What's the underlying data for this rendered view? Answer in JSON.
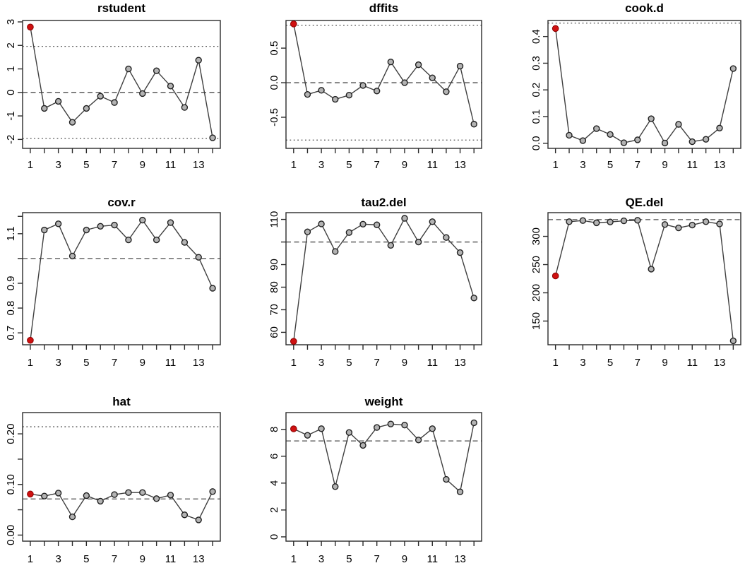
{
  "colors": {
    "background": "#ffffff",
    "axis": "#2b2b2b",
    "line": "#3f3f3f",
    "point_fill": "#b3b3b3",
    "point_stroke": "#1f1f1f",
    "influential_fill": "#cf1111",
    "influential_stroke": "#8a0000",
    "ref_line": "#4d4d4d"
  },
  "chart_data": [
    {
      "type": "line",
      "title": "rstudent",
      "x": [
        1,
        2,
        3,
        4,
        5,
        6,
        7,
        8,
        9,
        10,
        11,
        12,
        13,
        14
      ],
      "values": [
        2.78,
        -0.68,
        -0.38,
        -1.27,
        -0.68,
        -0.16,
        -0.43,
        1.0,
        -0.05,
        0.92,
        0.27,
        -0.64,
        1.37,
        -1.93
      ],
      "influential_index": 0,
      "xlim": [
        0.45,
        14.55
      ],
      "ylim": [
        -2.38,
        3.06
      ],
      "yticks": [
        {
          "v": -2,
          "label": "-2"
        },
        {
          "v": -1,
          "label": "-1"
        },
        {
          "v": 0,
          "label": "0"
        },
        {
          "v": 1,
          "label": "1"
        },
        {
          "v": 2,
          "label": "2"
        },
        {
          "v": 3,
          "label": "3"
        }
      ],
      "xtick_labels": [
        {
          "v": 1,
          "label": "1"
        },
        {
          "v": 3,
          "label": "3"
        },
        {
          "v": 5,
          "label": "5"
        },
        {
          "v": 7,
          "label": "7"
        },
        {
          "v": 9,
          "label": "9"
        },
        {
          "v": 11,
          "label": "11"
        },
        {
          "v": 13,
          "label": "13"
        }
      ],
      "ref_lines": [
        {
          "y": 1.96,
          "style": "dotted"
        },
        {
          "y": 0,
          "style": "dashed"
        },
        {
          "y": -1.96,
          "style": "dotted"
        }
      ]
    },
    {
      "type": "line",
      "title": "dffits",
      "x": [
        1,
        2,
        3,
        4,
        5,
        6,
        7,
        8,
        9,
        10,
        11,
        12,
        13,
        14
      ],
      "values": [
        0.85,
        -0.17,
        -0.11,
        -0.24,
        -0.18,
        -0.04,
        -0.12,
        0.3,
        0.0,
        0.26,
        0.07,
        -0.13,
        0.24,
        -0.6
      ],
      "influential_index": 0,
      "xlim": [
        0.45,
        14.55
      ],
      "ylim": [
        -0.95,
        0.9
      ],
      "yticks": [
        {
          "v": -0.5,
          "label": "-0.5"
        },
        {
          "v": 0,
          "label": "0.0"
        },
        {
          "v": 0.5,
          "label": "0.5"
        }
      ],
      "xtick_labels": [
        {
          "v": 1,
          "label": "1"
        },
        {
          "v": 3,
          "label": "3"
        },
        {
          "v": 5,
          "label": "5"
        },
        {
          "v": 7,
          "label": "7"
        },
        {
          "v": 9,
          "label": "9"
        },
        {
          "v": 11,
          "label": "11"
        },
        {
          "v": 13,
          "label": "13"
        }
      ],
      "ref_lines": [
        {
          "y": 0.83,
          "style": "dotted"
        },
        {
          "y": 0,
          "style": "dashed"
        },
        {
          "y": -0.83,
          "style": "dotted"
        }
      ]
    },
    {
      "type": "line",
      "title": "cook.d",
      "x": [
        1,
        2,
        3,
        4,
        5,
        6,
        7,
        8,
        9,
        10,
        11,
        12,
        13,
        14
      ],
      "values": [
        0.43,
        0.03,
        0.01,
        0.055,
        0.033,
        0.002,
        0.013,
        0.092,
        0.001,
        0.071,
        0.006,
        0.015,
        0.057,
        0.28
      ],
      "influential_index": 0,
      "xlim": [
        0.45,
        14.55
      ],
      "ylim": [
        -0.019,
        0.46
      ],
      "yticks": [
        {
          "v": 0,
          "label": "0.0"
        },
        {
          "v": 0.1,
          "label": "0.1"
        },
        {
          "v": 0.2,
          "label": "0.2"
        },
        {
          "v": 0.3,
          "label": "0.3"
        },
        {
          "v": 0.4,
          "label": "0.4"
        }
      ],
      "xtick_labels": [
        {
          "v": 1,
          "label": "1"
        },
        {
          "v": 3,
          "label": "3"
        },
        {
          "v": 5,
          "label": "5"
        },
        {
          "v": 7,
          "label": "7"
        },
        {
          "v": 9,
          "label": "9"
        },
        {
          "v": 11,
          "label": "11"
        },
        {
          "v": 13,
          "label": "13"
        }
      ],
      "ref_lines": [
        {
          "y": 0.45,
          "style": "dotted"
        }
      ]
    },
    {
      "type": "line",
      "title": "cov.r",
      "x": [
        1,
        2,
        3,
        4,
        5,
        6,
        7,
        8,
        9,
        10,
        11,
        12,
        13,
        14
      ],
      "values": [
        0.67,
        1.115,
        1.14,
        1.01,
        1.115,
        1.13,
        1.135,
        1.075,
        1.155,
        1.075,
        1.145,
        1.065,
        1.005,
        0.88
      ],
      "influential_index": 0,
      "xlim": [
        0.45,
        14.55
      ],
      "ylim": [
        0.652,
        1.185
      ],
      "yticks": [
        {
          "v": 0.7,
          "label": "0.7"
        },
        {
          "v": 0.8,
          "label": "0.8"
        },
        {
          "v": 0.9,
          "label": "0.9"
        },
        {
          "v": 1.0,
          "label": ""
        },
        {
          "v": 1.1,
          "label": "1.1"
        },
        {
          "v": 1.17,
          "label": ""
        }
      ],
      "xtick_labels": [
        {
          "v": 1,
          "label": "1"
        },
        {
          "v": 3,
          "label": "3"
        },
        {
          "v": 5,
          "label": "5"
        },
        {
          "v": 7,
          "label": "7"
        },
        {
          "v": 9,
          "label": "9"
        },
        {
          "v": 11,
          "label": "11"
        },
        {
          "v": 13,
          "label": "13"
        }
      ],
      "ref_lines": [
        {
          "y": 1.0,
          "style": "dashed"
        }
      ]
    },
    {
      "type": "line",
      "title": "tau2.del",
      "x": [
        1,
        2,
        3,
        4,
        5,
        6,
        7,
        8,
        9,
        10,
        11,
        12,
        13,
        14
      ],
      "values": [
        56,
        104.5,
        108,
        95.8,
        104.2,
        107.9,
        107.6,
        98.5,
        110.5,
        100,
        109,
        102,
        95.3,
        75.2
      ],
      "influential_index": 0,
      "xlim": [
        0.45,
        14.55
      ],
      "ylim": [
        54.5,
        113
      ],
      "yticks": [
        {
          "v": 60,
          "label": "60"
        },
        {
          "v": 70,
          "label": "70"
        },
        {
          "v": 80,
          "label": "80"
        },
        {
          "v": 90,
          "label": "90"
        },
        {
          "v": 100,
          "label": ""
        },
        {
          "v": 110,
          "label": "110"
        }
      ],
      "xtick_labels": [
        {
          "v": 1,
          "label": "1"
        },
        {
          "v": 3,
          "label": "3"
        },
        {
          "v": 5,
          "label": "5"
        },
        {
          "v": 7,
          "label": "7"
        },
        {
          "v": 9,
          "label": "9"
        },
        {
          "v": 11,
          "label": "11"
        },
        {
          "v": 13,
          "label": "13"
        }
      ],
      "ref_lines": [
        {
          "y": 100,
          "style": "dashed"
        }
      ]
    },
    {
      "type": "line",
      "title": "QE.del",
      "x": [
        1,
        2,
        3,
        4,
        5,
        6,
        7,
        8,
        9,
        10,
        11,
        12,
        13,
        14
      ],
      "values": [
        230,
        326,
        328,
        324,
        325.5,
        327.5,
        328.5,
        242,
        321,
        315,
        320,
        326,
        322,
        115
      ],
      "influential_index": 0,
      "xlim": [
        0.45,
        14.55
      ],
      "ylim": [
        108,
        342
      ],
      "yticks": [
        {
          "v": 150,
          "label": "150"
        },
        {
          "v": 200,
          "label": "200"
        },
        {
          "v": 250,
          "label": "250"
        },
        {
          "v": 300,
          "label": "300"
        }
      ],
      "xtick_labels": [
        {
          "v": 1,
          "label": "1"
        },
        {
          "v": 3,
          "label": "3"
        },
        {
          "v": 5,
          "label": "5"
        },
        {
          "v": 7,
          "label": "7"
        },
        {
          "v": 9,
          "label": "9"
        },
        {
          "v": 11,
          "label": "11"
        },
        {
          "v": 13,
          "label": "13"
        }
      ],
      "ref_lines": [
        {
          "y": 329.6,
          "style": "dashed"
        }
      ]
    },
    {
      "type": "line",
      "title": "hat",
      "x": [
        1,
        2,
        3,
        4,
        5,
        6,
        7,
        8,
        9,
        10,
        11,
        12,
        13,
        14
      ],
      "values": [
        0.081,
        0.077,
        0.083,
        0.036,
        0.078,
        0.067,
        0.08,
        0.084,
        0.084,
        0.072,
        0.079,
        0.04,
        0.03,
        0.086
      ],
      "influential_index": 0,
      "xlim": [
        0.45,
        14.55
      ],
      "ylim": [
        -0.012,
        0.242
      ],
      "yticks": [
        {
          "v": 0,
          "label": "0.00"
        },
        {
          "v": 0.05,
          "label": ""
        },
        {
          "v": 0.1,
          "label": "0.10"
        },
        {
          "v": 0.15,
          "label": ""
        },
        {
          "v": 0.2,
          "label": "0.20"
        }
      ],
      "xtick_labels": [
        {
          "v": 1,
          "label": "1"
        },
        {
          "v": 3,
          "label": "3"
        },
        {
          "v": 5,
          "label": "5"
        },
        {
          "v": 7,
          "label": "7"
        },
        {
          "v": 9,
          "label": "9"
        },
        {
          "v": 11,
          "label": "11"
        },
        {
          "v": 13,
          "label": "13"
        }
      ],
      "ref_lines": [
        {
          "y": 0.214,
          "style": "dotted"
        },
        {
          "y": 0.0714,
          "style": "dashed"
        }
      ]
    },
    {
      "type": "line",
      "title": "weight",
      "x": [
        1,
        2,
        3,
        4,
        5,
        6,
        7,
        8,
        9,
        10,
        11,
        12,
        13,
        14
      ],
      "values": [
        8.04,
        7.56,
        8.05,
        3.74,
        7.77,
        6.81,
        8.14,
        8.4,
        8.32,
        7.21,
        8.05,
        4.28,
        3.35,
        8.49
      ],
      "influential_index": 0,
      "xlim": [
        0.45,
        14.55
      ],
      "ylim": [
        -0.32,
        9.25
      ],
      "yticks": [
        {
          "v": 0,
          "label": "0"
        },
        {
          "v": 2,
          "label": "2"
        },
        {
          "v": 4,
          "label": "4"
        },
        {
          "v": 6,
          "label": "6"
        },
        {
          "v": 8,
          "label": "8"
        }
      ],
      "xtick_labels": [
        {
          "v": 1,
          "label": "1"
        },
        {
          "v": 3,
          "label": "3"
        },
        {
          "v": 5,
          "label": "5"
        },
        {
          "v": 7,
          "label": "7"
        },
        {
          "v": 9,
          "label": "9"
        },
        {
          "v": 11,
          "label": "11"
        },
        {
          "v": 13,
          "label": "13"
        }
      ],
      "ref_lines": [
        {
          "y": 7.14,
          "style": "dashed"
        }
      ]
    }
  ]
}
